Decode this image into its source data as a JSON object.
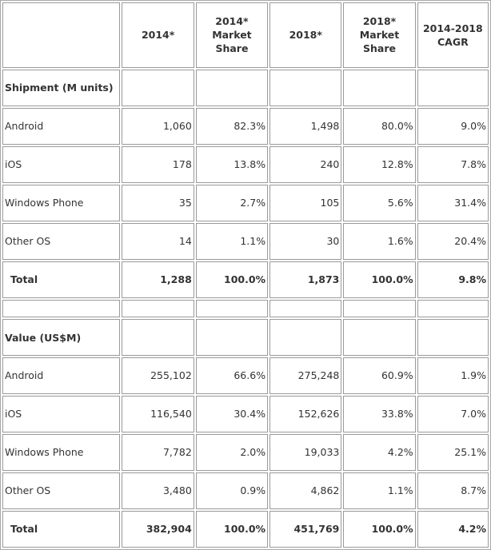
{
  "header": {
    "corner": "",
    "col1": "2014*",
    "col2": "2014* Market Share",
    "col3": "2018*",
    "col4": "2018* Market Share",
    "col5": "2014-2018 CAGR"
  },
  "shipment": {
    "title": "Shipment (M units)",
    "rows": [
      {
        "os": "Android",
        "v2014": "1,060",
        "s2014": "82.3%",
        "v2018": "1,498",
        "s2018": "80.0%",
        "cagr": "9.0%"
      },
      {
        "os": "iOS",
        "v2014": "178",
        "s2014": "13.8%",
        "v2018": "240",
        "s2018": "12.8%",
        "cagr": "7.8%"
      },
      {
        "os": "Windows Phone",
        "v2014": "35",
        "s2014": "2.7%",
        "v2018": "105",
        "s2018": "5.6%",
        "cagr": "31.4%"
      },
      {
        "os": "Other OS",
        "v2014": "14",
        "s2014": "1.1%",
        "v2018": "30",
        "s2018": "1.6%",
        "cagr": "20.4%"
      },
      {
        "os": "Total",
        "v2014": "1,288",
        "s2014": "100.0%",
        "v2018": "1,873",
        "s2018": "100.0%",
        "cagr": "9.8%"
      }
    ]
  },
  "value": {
    "title": "Value (US$M)",
    "rows": [
      {
        "os": "Android",
        "v2014": "255,102",
        "s2014": "66.6%",
        "v2018": "275,248",
        "s2018": "60.9%",
        "cagr": "1.9%"
      },
      {
        "os": "iOS",
        "v2014": "116,540",
        "s2014": "30.4%",
        "v2018": "152,626",
        "s2018": "33.8%",
        "cagr": "7.0%"
      },
      {
        "os": "Windows Phone",
        "v2014": "7,782",
        "s2014": "2.0%",
        "v2018": "19,033",
        "s2018": "4.2%",
        "cagr": "25.1%"
      },
      {
        "os": "Other OS",
        "v2014": "3,480",
        "s2014": "0.9%",
        "v2018": "4,862",
        "s2018": "1.1%",
        "cagr": "8.7%"
      },
      {
        "os": "Total",
        "v2014": "382,904",
        "s2014": "100.0%",
        "v2018": "451,769",
        "s2018": "100.0%",
        "cagr": "4.2%"
      }
    ]
  }
}
